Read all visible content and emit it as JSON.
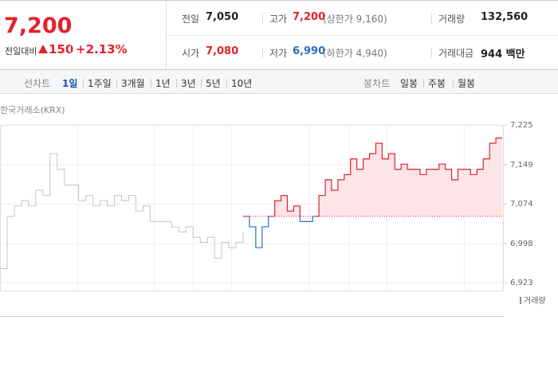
{
  "header": {
    "price": "7,200",
    "change_label": "전일대비",
    "change": "150",
    "change_rate": "+2.13%",
    "rows": [
      [
        {
          "label": "전일",
          "value": "7,050"
        },
        {
          "label": "고가",
          "value": "7,200",
          "note": "(상한가 9,160)"
        },
        {
          "label": "거래량",
          "value": "132,560"
        }
      ],
      [
        {
          "label": "시가",
          "value": "7,080"
        },
        {
          "label": "저가",
          "value": "6,990",
          "note": "(하한가 4,940)"
        },
        {
          "label": "거래대금",
          "value": "944 백만"
        }
      ]
    ]
  },
  "tabs": {
    "line_label": "선차트",
    "line_periods": [
      "1일",
      "1주일",
      "3개월",
      "1년",
      "3년",
      "5년",
      "10년"
    ],
    "selected": 0,
    "candle_label": "봉차트",
    "candle_periods": [
      "일봉",
      "주봉",
      "월봉"
    ]
  },
  "chart_data": {
    "type": "line",
    "source": "한국거래소(KRX)",
    "ylim": [
      6908,
      7225
    ],
    "yticks": [
      {
        "value": 7225,
        "label": "7,225"
      },
      {
        "value": 7149,
        "label": "7,149"
      },
      {
        "value": 7074,
        "label": "7,074"
      },
      {
        "value": 6998,
        "label": "6,998"
      },
      {
        "value": 6923,
        "label": "6,923"
      }
    ],
    "baseline": 7050,
    "grid": true,
    "series": [
      {
        "color": "#c4c4c4",
        "values": [
          6950,
          7050,
          7070,
          7080,
          7070,
          7100,
          7090,
          7170,
          7140,
          7110,
          7110,
          7080,
          7090,
          7070,
          7080,
          7070,
          7090,
          7080,
          7090,
          7060,
          7070,
          7040,
          7040,
          7040,
          7030,
          7020,
          7030,
          7010,
          7000,
          7010,
          6970,
          7000,
          6990,
          7000,
          7020
        ]
      },
      {
        "color": "#e4212b",
        "down_color": "#2a6dc9",
        "fill": "#fde4e6",
        "values": [
          7050,
          7030,
          6990,
          7030,
          7050,
          7080,
          7090,
          7060,
          7070,
          7040,
          7040,
          7050,
          7090,
          7120,
          7100,
          7120,
          7130,
          7160,
          7140,
          7160,
          7170,
          7190,
          7160,
          7170,
          7140,
          7150,
          7140,
          7140,
          7130,
          7140,
          7140,
          7150,
          7140,
          7120,
          7140,
          7140,
          7130,
          7140,
          7160,
          7190,
          7200,
          7200
        ]
      }
    ],
    "volume_label": "거래량",
    "volume_color": "#9c7fc6"
  }
}
